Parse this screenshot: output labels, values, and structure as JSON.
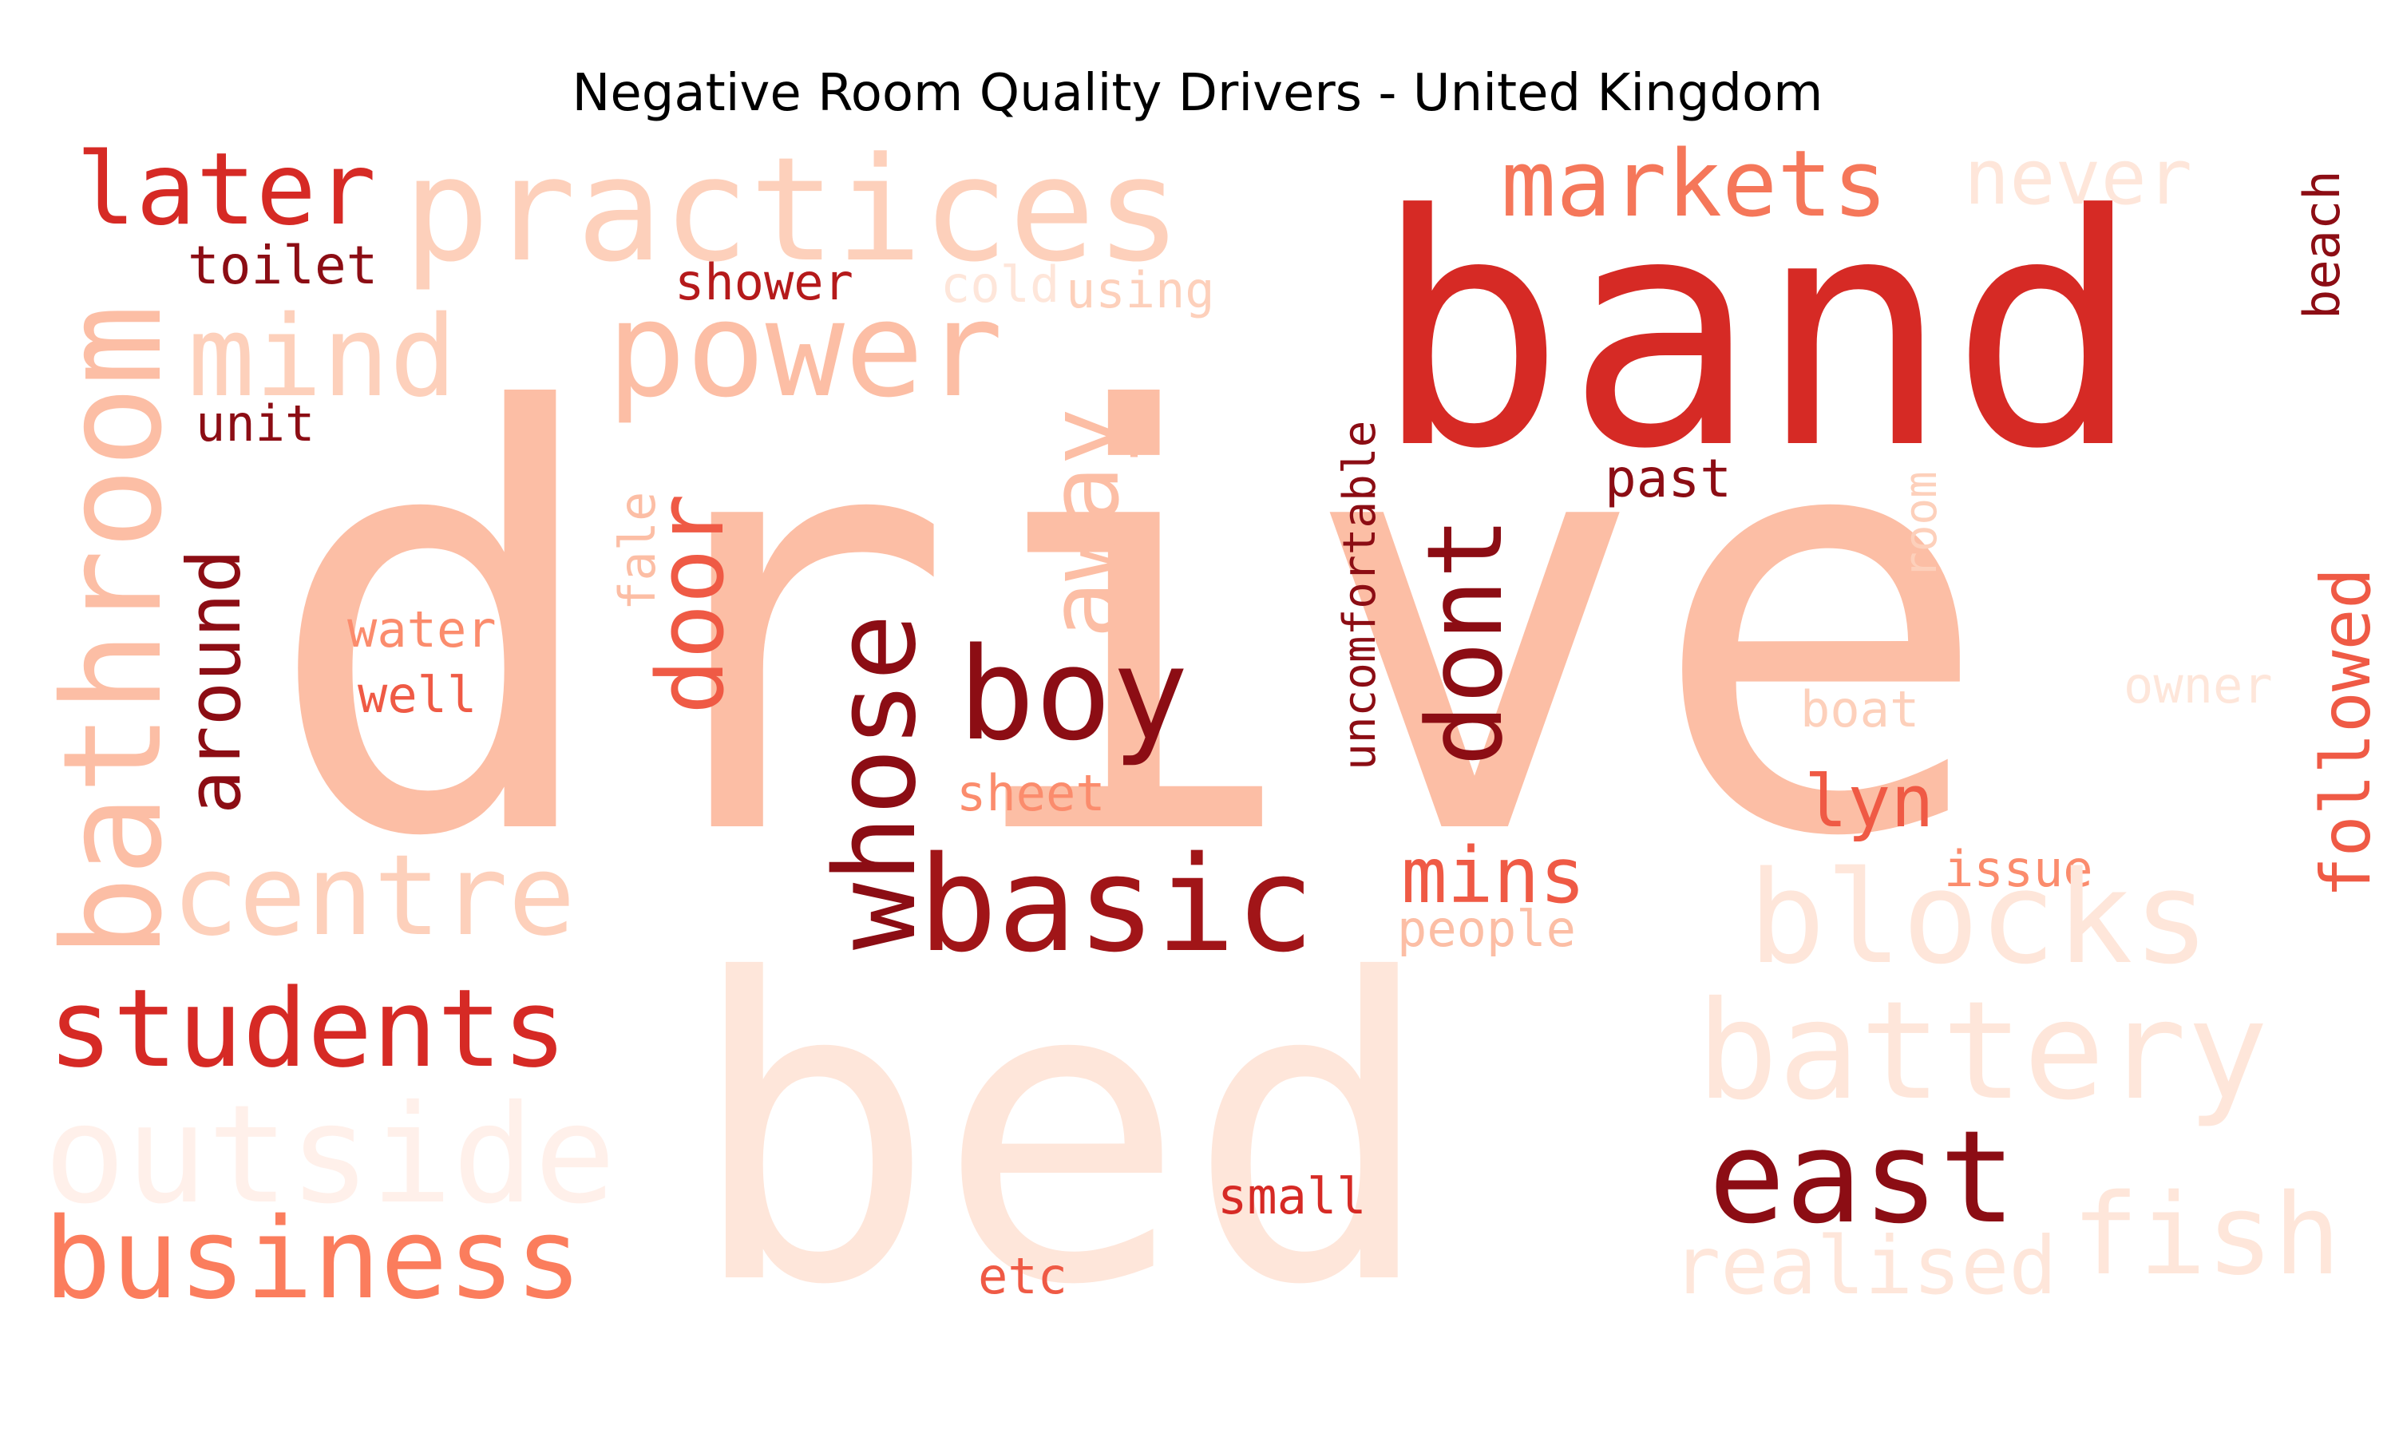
{
  "title": "Negative Room Quality Drivers - United Kingdom",
  "palette": {
    "lightest": "#fee6da",
    "light": "#fdd0bb",
    "light_mid": "#fcbea5",
    "mid": "#fb8c6d",
    "mid_dark": "#ef5a45",
    "dark": "#d62a25",
    "darker": "#b51a1b",
    "darkest": "#8c0d14"
  },
  "words": [
    {
      "id": "drive",
      "text": "drive",
      "color": "#fcbea5",
      "rotate": false
    },
    {
      "id": "bed",
      "text": "bed",
      "color": "#fee6da",
      "rotate": false
    },
    {
      "id": "band",
      "text": "band",
      "color": "#d62a25",
      "rotate": false
    },
    {
      "id": "practices",
      "text": "practices",
      "color": "#fdd0bb",
      "rotate": false
    },
    {
      "id": "later",
      "text": "later",
      "color": "#d62a25",
      "rotate": false
    },
    {
      "id": "markets",
      "text": "markets",
      "color": "#f5775a",
      "rotate": false
    },
    {
      "id": "never",
      "text": "never",
      "color": "#fee6da",
      "rotate": false
    },
    {
      "id": "beach",
      "text": "beach",
      "color": "#8c0d14",
      "rotate": true
    },
    {
      "id": "toilet",
      "text": "toilet",
      "color": "#8c0d14",
      "rotate": false
    },
    {
      "id": "shower",
      "text": "shower",
      "color": "#b51a1b",
      "rotate": false
    },
    {
      "id": "cold",
      "text": "cold",
      "color": "#fee6da",
      "rotate": false
    },
    {
      "id": "using",
      "text": "using",
      "color": "#fdd0bb",
      "rotate": false
    },
    {
      "id": "mind",
      "text": "mind",
      "color": "#fdd0bb",
      "rotate": false
    },
    {
      "id": "power",
      "text": "power",
      "color": "#fcbea5",
      "rotate": false
    },
    {
      "id": "bathroom",
      "text": "bathroom",
      "color": "#fcbea5",
      "rotate": true
    },
    {
      "id": "unit",
      "text": "unit",
      "color": "#8c0d14",
      "rotate": false
    },
    {
      "id": "away",
      "text": "away",
      "color": "#fcbea5",
      "rotate": true
    },
    {
      "id": "uncomfortable",
      "text": "uncomfortable",
      "color": "#8c0d14",
      "rotate": true
    },
    {
      "id": "past",
      "text": "past",
      "color": "#8c0d14",
      "rotate": false
    },
    {
      "id": "room",
      "text": "room",
      "color": "#fdd0bb",
      "rotate": true
    },
    {
      "id": "door",
      "text": "door",
      "color": "#ef5a45",
      "rotate": true
    },
    {
      "id": "fale",
      "text": "fale",
      "color": "#fcbea5",
      "rotate": true
    },
    {
      "id": "around",
      "text": "around",
      "color": "#8c0d14",
      "rotate": true
    },
    {
      "id": "dont",
      "text": "dont",
      "color": "#8c0d14",
      "rotate": true
    },
    {
      "id": "whose",
      "text": "whose",
      "color": "#8c0d14",
      "rotate": true
    },
    {
      "id": "boy",
      "text": "boy",
      "color": "#8c0d14",
      "rotate": false
    },
    {
      "id": "water",
      "text": "water",
      "color": "#fb8c6d",
      "rotate": false
    },
    {
      "id": "well",
      "text": "well",
      "color": "#ef5a45",
      "rotate": false
    },
    {
      "id": "followed",
      "text": "followed",
      "color": "#ef5a45",
      "rotate": true
    },
    {
      "id": "owner",
      "text": "owner",
      "color": "#fee6da",
      "rotate": false
    },
    {
      "id": "boat",
      "text": "boat",
      "color": "#fdd0bb",
      "rotate": false
    },
    {
      "id": "lyn",
      "text": "lyn",
      "color": "#ef5a45",
      "rotate": false
    },
    {
      "id": "sheet",
      "text": "sheet",
      "color": "#fb8c6d",
      "rotate": false
    },
    {
      "id": "centre",
      "text": "centre",
      "color": "#fdd0bb",
      "rotate": false
    },
    {
      "id": "basic",
      "text": "basic",
      "color": "#a11518",
      "rotate": false
    },
    {
      "id": "mins",
      "text": "mins",
      "color": "#ef5a45",
      "rotate": false
    },
    {
      "id": "issue",
      "text": "issue",
      "color": "#fb8c6d",
      "rotate": false
    },
    {
      "id": "people",
      "text": "people",
      "color": "#fcbea5",
      "rotate": false
    },
    {
      "id": "blocks",
      "text": "blocks",
      "color": "#fee6da",
      "rotate": false
    },
    {
      "id": "students",
      "text": "students",
      "color": "#d62a25",
      "rotate": false
    },
    {
      "id": "battery",
      "text": "battery",
      "color": "#fee6da",
      "rotate": false
    },
    {
      "id": "outside",
      "text": "outside",
      "color": "#fff0ea",
      "rotate": false
    },
    {
      "id": "east",
      "text": "east",
      "color": "#8c0d14",
      "rotate": false
    },
    {
      "id": "small",
      "text": "small",
      "color": "#d62a25",
      "rotate": false
    },
    {
      "id": "fish",
      "text": "fish",
      "color": "#fee6da",
      "rotate": false
    },
    {
      "id": "business",
      "text": "business",
      "color": "#fb7d5d",
      "rotate": false
    },
    {
      "id": "realised",
      "text": "realised",
      "color": "#fee6da",
      "rotate": false
    },
    {
      "id": "etc",
      "text": "etc",
      "color": "#ef5a45",
      "rotate": false
    }
  ]
}
